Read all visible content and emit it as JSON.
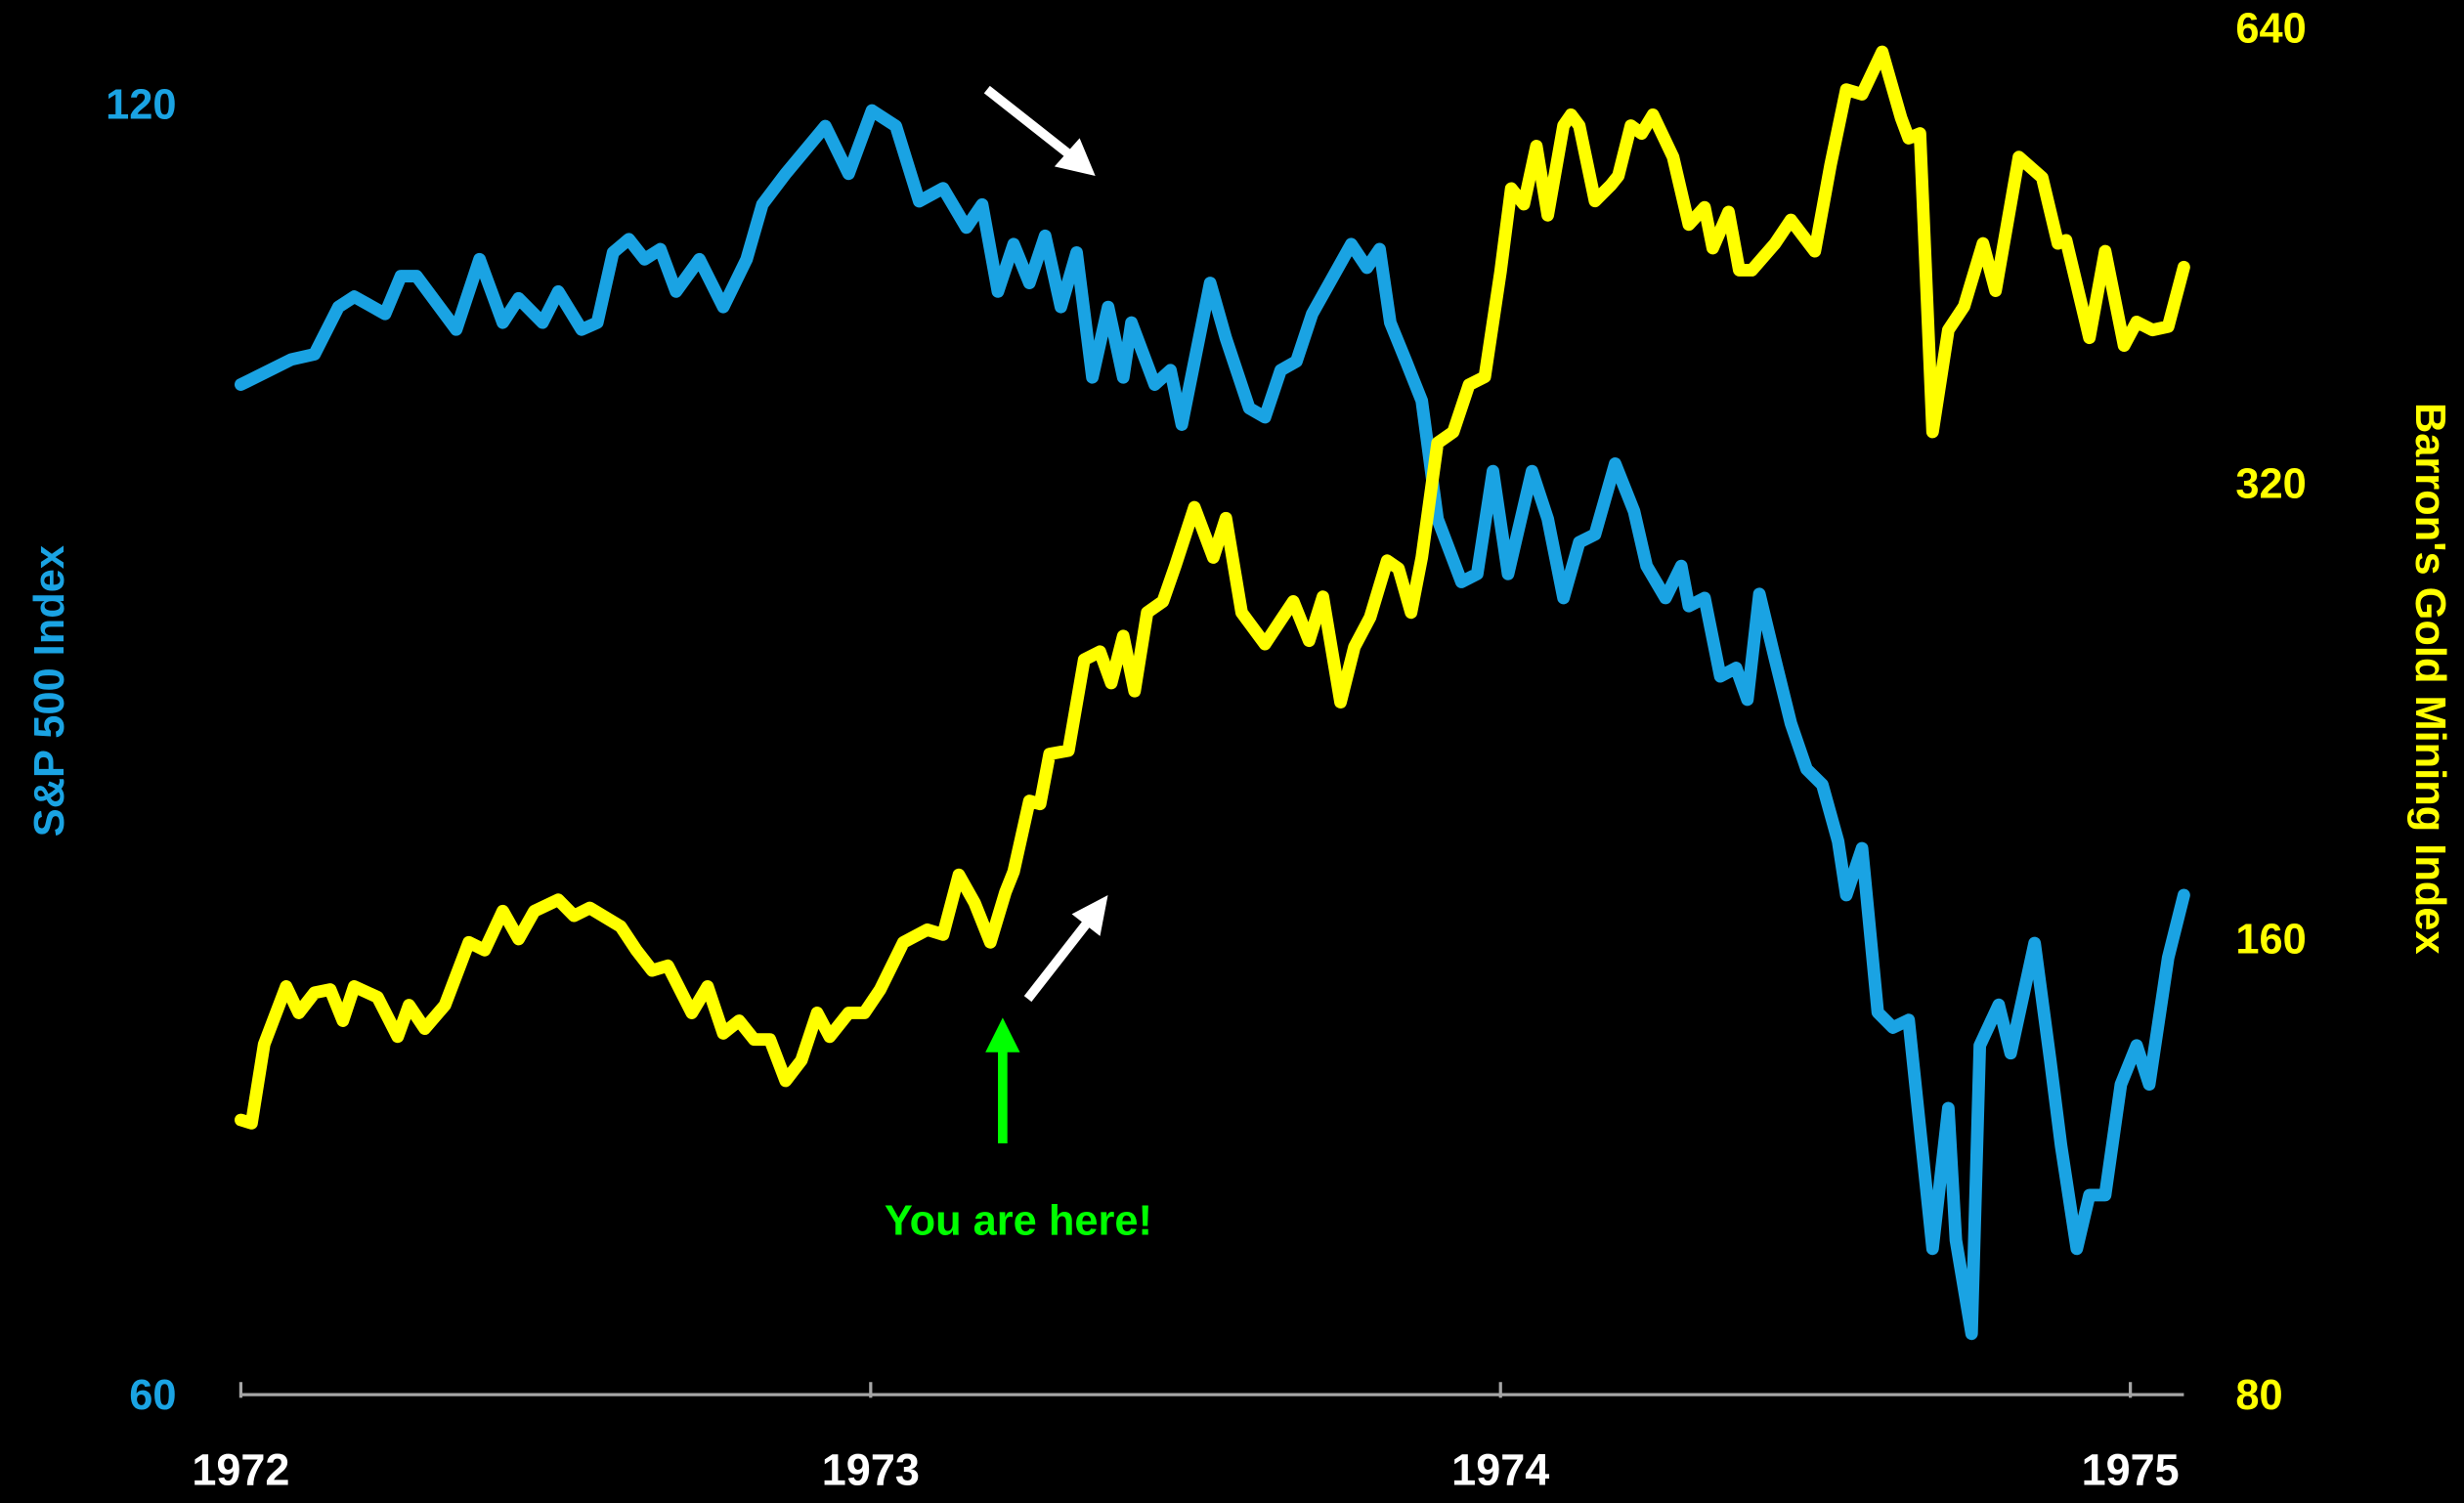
{
  "chart_data": {
    "type": "line",
    "log_scale": true,
    "grid": false,
    "xlim": [
      1972,
      1975.085
    ],
    "xticks": [
      1972,
      1973,
      1974,
      1975
    ],
    "ylim": [
      60,
      125
    ],
    "yticks": [
      60,
      120
    ],
    "y2lim": [
      80,
      640
    ],
    "y2ticks": [
      80,
      160,
      320,
      640
    ],
    "annotations": [
      {
        "text": "You are here!",
        "color": "#00ff00"
      }
    ],
    "series": [
      {
        "name": "S&P 500 Index",
        "color": "#1aa3e3",
        "axis": "y",
        "x": [
          1972.0,
          1972.08,
          1972.117,
          1972.155,
          1972.18,
          1972.229,
          1972.254,
          1972.279,
          1972.342,
          1972.379,
          1972.416,
          1972.441,
          1972.479,
          1972.504,
          1972.541,
          1972.566,
          1972.591,
          1972.616,
          1972.641,
          1972.666,
          1972.691,
          1972.728,
          1972.766,
          1972.803,
          1972.828,
          1972.865,
          1972.928,
          1972.965,
          1973.002,
          1973.04,
          1973.077,
          1973.115,
          1973.152,
          1973.177,
          1973.202,
          1973.227,
          1973.252,
          1973.277,
          1973.302,
          1973.327,
          1973.352,
          1973.377,
          1973.401,
          1973.414,
          1973.451,
          1973.476,
          1973.494,
          1973.539,
          1973.564,
          1973.601,
          1973.626,
          1973.651,
          1973.676,
          1973.701,
          1973.763,
          1973.788,
          1973.808,
          1973.825,
          1973.85,
          1973.875,
          1973.9,
          1973.938,
          1973.963,
          1973.988,
          1974.012,
          1974.05,
          1974.075,
          1974.1,
          1974.125,
          1974.15,
          1974.182,
          1974.212,
          1974.232,
          1974.262,
          1974.287,
          1974.299,
          1974.324,
          1974.349,
          1974.374,
          1974.392,
          1974.411,
          1974.436,
          1974.461,
          1974.486,
          1974.511,
          1974.536,
          1974.549,
          1974.574,
          1974.599,
          1974.623,
          1974.648,
          1974.686,
          1974.711,
          1974.723,
          1974.748,
          1974.761,
          1974.791,
          1974.81,
          1974.848,
          1974.873,
          1974.89,
          1974.915,
          1974.935,
          1974.96,
          1974.985,
          1975.01,
          1975.03,
          1975.06,
          1975.085
        ],
        "values": [
          103.4,
          104.8,
          105.1,
          107.8,
          108.4,
          107.4,
          109.6,
          109.6,
          106.5,
          110.6,
          106.9,
          108.3,
          106.9,
          108.7,
          106.5,
          106.9,
          111.0,
          111.8,
          110.6,
          111.2,
          108.7,
          110.6,
          107.8,
          110.6,
          113.9,
          115.8,
          118.8,
          115.8,
          119.8,
          118.8,
          114.1,
          114.9,
          112.5,
          113.9,
          108.7,
          111.5,
          109.2,
          112.0,
          107.8,
          111.0,
          103.8,
          107.8,
          103.8,
          106.9,
          103.4,
          104.2,
          101.2,
          109.2,
          106.0,
          102.1,
          101.6,
          104.2,
          104.7,
          107.4,
          111.5,
          110.1,
          111.2,
          106.9,
          104.7,
          102.5,
          96.2,
          93.0,
          93.4,
          98.7,
          93.4,
          98.7,
          96.2,
          92.2,
          95.0,
          95.4,
          99.1,
          96.6,
          93.8,
          92.2,
          93.8,
          91.8,
          92.2,
          88.4,
          88.8,
          87.3,
          92.4,
          89.2,
          86.2,
          84.1,
          83.4,
          80.9,
          78.6,
          80.6,
          73.8,
          73.2,
          73.5,
          65.0,
          70.1,
          65.3,
          62.1,
          72.5,
          74.1,
          72.2,
          76.6,
          71.9,
          68.7,
          65.0,
          66.9,
          66.9,
          71.0,
          72.5,
          71.0,
          76.0,
          78.6
        ]
      },
      {
        "name": "Barron's Gold Mining Index",
        "color": "#ffff00",
        "axis": "y2",
        "x": [
          1972.0,
          1972.017,
          1972.037,
          1972.072,
          1972.092,
          1972.117,
          1972.142,
          1972.162,
          1972.18,
          1972.217,
          1972.249,
          1972.267,
          1972.292,
          1972.324,
          1972.362,
          1972.387,
          1972.416,
          1972.441,
          1972.466,
          1972.504,
          1972.529,
          1972.554,
          1972.603,
          1972.628,
          1972.653,
          1972.678,
          1972.716,
          1972.741,
          1972.766,
          1972.791,
          1972.815,
          1972.84,
          1972.865,
          1972.89,
          1972.915,
          1972.935,
          1972.965,
          1972.99,
          1973.015,
          1973.052,
          1973.09,
          1973.115,
          1973.14,
          1973.165,
          1973.19,
          1973.214,
          1973.227,
          1973.252,
          1973.269,
          1973.284,
          1973.314,
          1973.339,
          1973.364,
          1973.382,
          1973.401,
          1973.419,
          1973.439,
          1973.464,
          1973.484,
          1973.514,
          1973.544,
          1973.564,
          1973.589,
          1973.626,
          1973.651,
          1973.671,
          1973.696,
          1973.718,
          1973.746,
          1973.768,
          1973.793,
          1973.82,
          1973.838,
          1973.858,
          1973.875,
          1973.9,
          1973.925,
          1973.95,
          1973.975,
          1974.0,
          1974.017,
          1974.037,
          1974.057,
          1974.075,
          1974.1,
          1974.112,
          1974.125,
          1974.15,
          1974.175,
          1974.187,
          1974.207,
          1974.224,
          1974.242,
          1974.274,
          1974.299,
          1974.324,
          1974.337,
          1974.362,
          1974.379,
          1974.399,
          1974.436,
          1974.461,
          1974.499,
          1974.524,
          1974.549,
          1974.574,
          1974.606,
          1974.636,
          1974.648,
          1974.666,
          1974.686,
          1974.711,
          1974.736,
          1974.766,
          1974.786,
          1974.823,
          1974.86,
          1974.885,
          1974.898,
          1974.935,
          1974.96,
          1974.99,
          1975.01,
          1975.035,
          1975.06,
          1975.085
        ],
        "values": [
          122.1,
          121.5,
          137.0,
          149.6,
          143.7,
          148.2,
          148.9,
          142.0,
          149.6,
          147.2,
          138.6,
          145.4,
          140.3,
          145.4,
          160.0,
          158.1,
          167.8,
          160.8,
          167.8,
          170.7,
          166.6,
          168.6,
          163.9,
          158.1,
          153.3,
          154.4,
          143.7,
          149.6,
          139.3,
          142.0,
          138.0,
          138.0,
          129.6,
          133.7,
          143.7,
          138.6,
          143.7,
          143.7,
          148.9,
          160.0,
          163.1,
          161.9,
          177.3,
          169.9,
          160.0,
          172.7,
          178.2,
          198.4,
          197.5,
          213.1,
          214.2,
          246.0,
          249.0,
          237.4,
          255.0,
          234.5,
          264.3,
          268.8,
          284.0,
          310.2,
          287.4,
          305.1,
          264.3,
          251.9,
          261.2,
          268.8,
          253.2,
          270.7,
          230.6,
          250.8,
          262.4,
          286.0,
          282.6,
          264.3,
          287.4,
          342.1,
          347.9,
          373.8,
          378.3,
          443.9,
          503.9,
          492.0,
          537.5,
          483.8,
          554.5,
          563.8,
          554.5,
          494.4,
          506.4,
          513.7,
          554.5,
          547.9,
          563.8,
          528.6,
          477.0,
          489.7,
          460.2,
          486.2,
          445.0,
          445.0,
          463.5,
          480.4,
          458.0,
          522.3,
          585.8,
          581.6,
          620.4,
          561.1,
          544.0,
          547.9,
          347.9,
          406.3,
          421.2,
          463.5,
          431.3,
          528.6,
          512.4,
          463.5,
          465.7,
          401.5,
          458.0,
          396.8,
          411.3,
          406.3,
          408.4,
          447.1
        ]
      }
    ]
  }
}
